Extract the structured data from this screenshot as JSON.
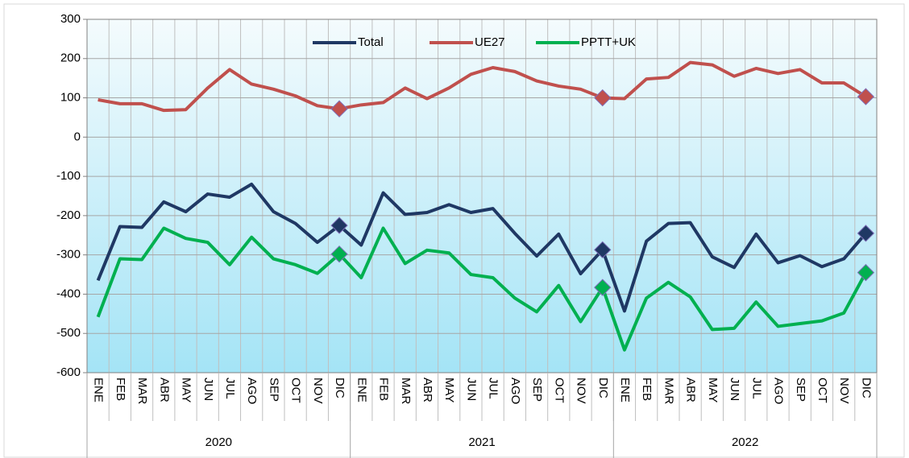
{
  "chart_data": {
    "type": "line",
    "categories": [
      "ENE",
      "FEB",
      "MAR",
      "ABR",
      "MAY",
      "JUN",
      "JUL",
      "AGO",
      "SEP",
      "OCT",
      "NOV",
      "DIC",
      "ENE",
      "FEB",
      "MAR",
      "ABR",
      "MAY",
      "JUN",
      "JUL",
      "AGO",
      "SEP",
      "OCT",
      "NOV",
      "DIC",
      "ENE",
      "FEB",
      "MAR",
      "ABR",
      "MAY",
      "JUN",
      "JUL",
      "AGO",
      "SEP",
      "OCT",
      "NOV",
      "DIC"
    ],
    "groups": [
      "2020",
      "2021",
      "2022"
    ],
    "series": [
      {
        "name": "Total",
        "color": "#1f3864",
        "values": [
          -365,
          -228,
          -230,
          -165,
          -190,
          -145,
          -153,
          -120,
          -190,
          -220,
          -268,
          -225,
          -275,
          -142,
          -197,
          -192,
          -172,
          -192,
          -182,
          -245,
          -303,
          -247,
          -348,
          -287,
          -443,
          -265,
          -220,
          -218,
          -305,
          -332,
          -247,
          -320,
          -302,
          -330,
          -310,
          -245
        ]
      },
      {
        "name": "UE27",
        "color": "#c0504d",
        "values": [
          95,
          85,
          85,
          68,
          70,
          125,
          172,
          135,
          122,
          105,
          80,
          72,
          82,
          88,
          125,
          98,
          125,
          160,
          177,
          167,
          143,
          130,
          122,
          100,
          98,
          148,
          152,
          190,
          184,
          155,
          175,
          162,
          172,
          138,
          138,
          103
        ]
      },
      {
        "name": "PPTT+UK",
        "color": "#00b050",
        "values": [
          -458,
          -310,
          -312,
          -232,
          -258,
          -268,
          -325,
          -255,
          -310,
          -325,
          -347,
          -298,
          -358,
          -232,
          -322,
          -288,
          -295,
          -350,
          -358,
          -410,
          -445,
          -378,
          -470,
          -383,
          -542,
          -410,
          -370,
          -407,
          -490,
          -487,
          -420,
          -482,
          -475,
          -468,
          -448,
          -345
        ]
      }
    ],
    "ylim": [
      -600,
      300
    ],
    "yticks": [
      -600,
      -500,
      -400,
      -300,
      -200,
      -100,
      0,
      100,
      200,
      300
    ],
    "grid": true,
    "legend": "top"
  }
}
